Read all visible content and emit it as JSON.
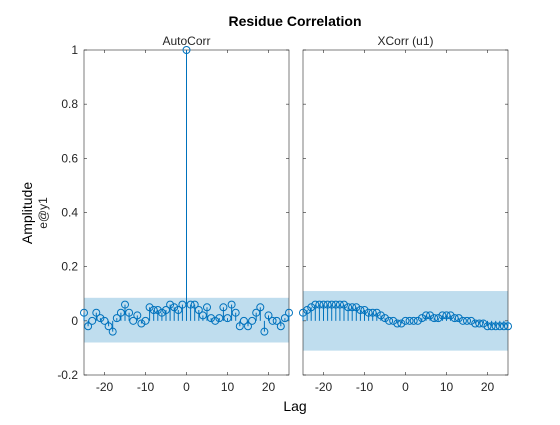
{
  "figure": {
    "title": "Residue Correlation",
    "xlabel": "Lag",
    "ylabel": "Amplitude",
    "ylabel_sub": "e@y1"
  },
  "colors": {
    "stem": "#0072BD",
    "confidence_band": "#BFDDEE",
    "axis": "#262626",
    "text": "#000000"
  },
  "chart_data": [
    {
      "type": "stem",
      "subtitle": "AutoCorr",
      "xlim": [
        -25,
        25
      ],
      "ylim": [
        -0.2,
        1
      ],
      "xticks": [
        -20,
        -10,
        0,
        10,
        20
      ],
      "yticks": [
        -0.2,
        0,
        0.2,
        0.4,
        0.6,
        0.8,
        1
      ],
      "ytick_labels": [
        "-0.2",
        "0",
        "0.2",
        "0.4",
        "0.6",
        "0.8",
        "1"
      ],
      "confidence_band": [
        -0.08,
        0.085
      ],
      "x": [
        -25,
        -24,
        -23,
        -22,
        -21,
        -20,
        -19,
        -18,
        -17,
        -16,
        -15,
        -14,
        -13,
        -12,
        -11,
        -10,
        -9,
        -8,
        -7,
        -6,
        -5,
        -4,
        -3,
        -2,
        -1,
        0,
        1,
        2,
        3,
        4,
        5,
        6,
        7,
        8,
        9,
        10,
        11,
        12,
        13,
        14,
        15,
        16,
        17,
        18,
        19,
        20,
        21,
        22,
        23,
        24,
        25
      ],
      "y": [
        0.03,
        -0.02,
        0.0,
        0.03,
        0.01,
        0.0,
        -0.02,
        -0.04,
        0.01,
        0.03,
        0.06,
        0.03,
        0.0,
        0.02,
        -0.01,
        0.0,
        0.05,
        0.04,
        0.04,
        0.03,
        0.04,
        0.06,
        0.05,
        0.04,
        0.06,
        1.0,
        0.06,
        0.06,
        0.04,
        0.02,
        0.05,
        0.01,
        0.0,
        0.01,
        0.05,
        0.01,
        0.06,
        0.03,
        -0.02,
        0.0,
        -0.02,
        0.0,
        0.03,
        0.05,
        -0.04,
        0.02,
        0.0,
        0.0,
        -0.02,
        0.01,
        0.03
      ],
      "grid": false
    },
    {
      "type": "stem",
      "subtitle": "XCorr (u1)",
      "xlim": [
        -25,
        25
      ],
      "ylim": [
        -0.2,
        1
      ],
      "xticks": [
        -20,
        -10,
        0,
        10,
        20
      ],
      "confidence_band": [
        -0.11,
        0.11
      ],
      "x": [
        -25,
        -24,
        -23,
        -22,
        -21,
        -20,
        -19,
        -18,
        -17,
        -16,
        -15,
        -14,
        -13,
        -12,
        -11,
        -10,
        -9,
        -8,
        -7,
        -6,
        -5,
        -4,
        -3,
        -2,
        -1,
        0,
        1,
        2,
        3,
        4,
        5,
        6,
        7,
        8,
        9,
        10,
        11,
        12,
        13,
        14,
        15,
        16,
        17,
        18,
        19,
        20,
        21,
        22,
        23,
        24,
        25
      ],
      "y": [
        0.03,
        0.04,
        0.05,
        0.06,
        0.06,
        0.06,
        0.06,
        0.06,
        0.06,
        0.06,
        0.06,
        0.05,
        0.05,
        0.05,
        0.04,
        0.04,
        0.03,
        0.03,
        0.03,
        0.02,
        0.01,
        0.0,
        0.0,
        -0.01,
        -0.01,
        0.0,
        0.0,
        0.0,
        0.0,
        0.01,
        0.02,
        0.02,
        0.01,
        0.01,
        0.02,
        0.02,
        0.02,
        0.01,
        0.01,
        0.0,
        0.0,
        0.0,
        -0.01,
        -0.01,
        -0.01,
        -0.02,
        -0.02,
        -0.02,
        -0.02,
        -0.02,
        -0.02
      ],
      "grid": false
    }
  ]
}
